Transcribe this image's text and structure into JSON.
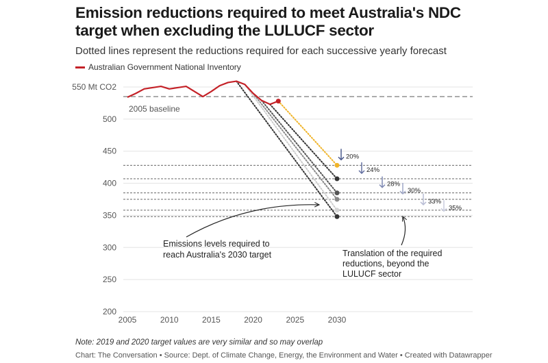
{
  "chart_data": {
    "type": "line",
    "title": "Emission reductions required to meet Australia's NDC target when excluding the LULUCF sector",
    "subtitle": "Dotted lines represent the reductions required for each successive yearly forecast",
    "xlabel": "",
    "ylabel": "",
    "xlim": [
      2005,
      2030
    ],
    "ylim": [
      200,
      550
    ],
    "x_ticks": [
      "2005",
      "2010",
      "2015",
      "2020",
      "2025",
      "2030"
    ],
    "y_ticks": [
      {
        "value": 550,
        "label": "550 Mt CO2"
      },
      {
        "value": 500,
        "label": "500"
      },
      {
        "value": 450,
        "label": "450"
      },
      {
        "value": 400,
        "label": "400"
      },
      {
        "value": 350,
        "label": "350"
      },
      {
        "value": 300,
        "label": "300"
      },
      {
        "value": 250,
        "label": "250"
      },
      {
        "value": 200,
        "label": "200"
      }
    ],
    "grid": true,
    "legend_position": "top-left",
    "series": [
      {
        "name": "Australian Government National Inventory",
        "color": "#c42127",
        "x": [
          2005,
          2006,
          2007,
          2008,
          2009,
          2010,
          2011,
          2012,
          2013,
          2014,
          2015,
          2016,
          2017,
          2018,
          2019,
          2020,
          2021,
          2022,
          2023
        ],
        "y": [
          534,
          540,
          547,
          549,
          551,
          547,
          549,
          551,
          543,
          535,
          543,
          552,
          557,
          559,
          554,
          540,
          529,
          523,
          528
        ]
      }
    ],
    "baseline": {
      "label": "2005 baseline",
      "value": 535
    },
    "projections": [
      {
        "from_year": 2023,
        "from_value": 528,
        "target": 428,
        "reduction_label": "20%",
        "color": "#f0b429",
        "arrow_color": "#4b5a8c"
      },
      {
        "from_year": 2022,
        "from_value": 523,
        "target": 407,
        "reduction_label": "24%",
        "color": "#333333",
        "arrow_color": "#6470a0"
      },
      {
        "from_year": 2021,
        "from_value": 529,
        "target": 385,
        "reduction_label": "28%",
        "color": "#555555",
        "arrow_color": "#7d88b2"
      },
      {
        "from_year": 2020,
        "from_value": 540,
        "target": 375,
        "reduction_label": "30%",
        "color": "#888888",
        "arrow_color": "#9ea6c6"
      },
      {
        "from_year": 2019,
        "from_value": 554,
        "target": 358,
        "reduction_label": "33%",
        "color": "#cccccc",
        "arrow_color": "#b8bdd4"
      },
      {
        "from_year": 2018,
        "from_value": 559,
        "target": 348,
        "reduction_label": "35%",
        "color": "#333333",
        "arrow_color": "#c8cbdc"
      }
    ],
    "annotations": [
      {
        "lines": [
          "Emissions levels required to",
          "reach Australia's 2030 target"
        ]
      },
      {
        "lines": [
          "Translation of the required",
          "reductions, beyond the",
          "LULUCF sector"
        ]
      }
    ]
  },
  "legend_label": "Australian Government National Inventory",
  "note": "Note: 2019 and 2020 target values are very similar and so may overlap",
  "source": "Chart: The Conversation • Source: Dept. of Climate Change, Energy, the Environment and Water • Created with Datawrapper"
}
